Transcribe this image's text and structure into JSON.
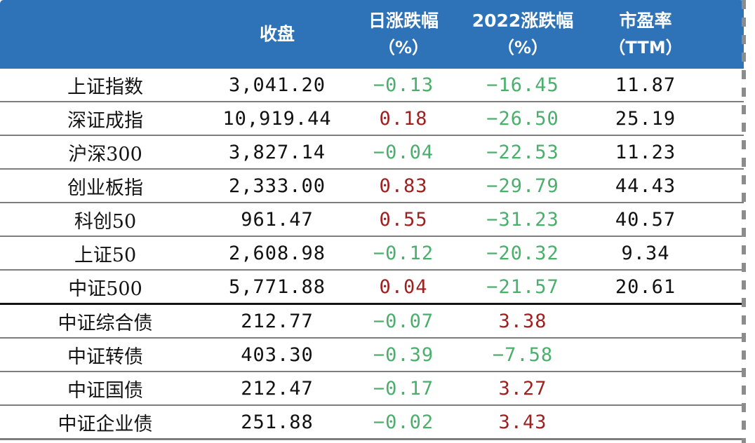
{
  "colors": {
    "header_bg": "#2E72B8",
    "header_text": "#ffffff",
    "decline_green": "#4CAE6C",
    "rise_red": "#9E2020",
    "row_line_gray": "#7d7d7d",
    "section_divider_black": "#141414",
    "dashed_border_gray": "#8c8c8c"
  },
  "header": {
    "name_col": "",
    "close": "收盘",
    "daily": "日涨跌幅",
    "daily_sub": "（%）",
    "ytd": "2022涨跌幅",
    "ytd_sub": "（%）",
    "pe": "市盈率",
    "pe_sub": "（TTM）"
  },
  "table": {
    "rows": [
      {
        "name": "上证指数",
        "close": "3,041.20",
        "daily": "−0.13",
        "daily_color": "green",
        "ytd": "−16.45",
        "ytd_color": "green",
        "pe": "11.87"
      },
      {
        "name": "深证成指",
        "close": "10,919.44",
        "daily": "0.18",
        "daily_color": "red",
        "ytd": "−26.50",
        "ytd_color": "green",
        "pe": "25.19"
      },
      {
        "name": "沪深300",
        "close": "3,827.14",
        "daily": "−0.04",
        "daily_color": "green",
        "ytd": "−22.53",
        "ytd_color": "green",
        "pe": "11.23"
      },
      {
        "name": "创业板指",
        "close": "2,333.00",
        "daily": "0.83",
        "daily_color": "red",
        "ytd": "−29.79",
        "ytd_color": "green",
        "pe": "44.43"
      },
      {
        "name": "科创50",
        "close": "961.47",
        "daily": "0.55",
        "daily_color": "red",
        "ytd": "−31.23",
        "ytd_color": "green",
        "pe": "40.57"
      },
      {
        "name": "上证50",
        "close": "2,608.98",
        "daily": "−0.12",
        "daily_color": "green",
        "ytd": "−20.32",
        "ytd_color": "green",
        "pe": "9.34"
      },
      {
        "name": "中证500",
        "close": "5,771.88",
        "daily": "0.04",
        "daily_color": "red",
        "ytd": "−21.57",
        "ytd_color": "green",
        "pe": "20.61"
      },
      {
        "name": "中证综合债",
        "close": "212.77",
        "daily": "−0.07",
        "daily_color": "green",
        "ytd": "3.38",
        "ytd_color": "red",
        "pe": ""
      },
      {
        "name": "中证转债",
        "close": "403.30",
        "daily": "−0.39",
        "daily_color": "green",
        "ytd": "−7.58",
        "ytd_color": "green",
        "pe": ""
      },
      {
        "name": "中证国债",
        "close": "212.47",
        "daily": "−0.17",
        "daily_color": "green",
        "ytd": "3.27",
        "ytd_color": "red",
        "pe": ""
      },
      {
        "name": "中证企业债",
        "close": "251.88",
        "daily": "−0.02",
        "daily_color": "green",
        "ytd": "3.43",
        "ytd_color": "red",
        "pe": ""
      }
    ]
  },
  "chart_data": {
    "type": "table",
    "title": "",
    "columns": [
      "",
      "收盘",
      "日涨跌幅（%）",
      "2022涨跌幅（%）",
      "市盈率（TTM）"
    ],
    "rows": [
      [
        "上证指数",
        3041.2,
        -0.13,
        -16.45,
        11.87
      ],
      [
        "深证成指",
        10919.44,
        0.18,
        -26.5,
        25.19
      ],
      [
        "沪深300",
        3827.14,
        -0.04,
        -22.53,
        11.23
      ],
      [
        "创业板指",
        2333.0,
        0.83,
        -29.79,
        44.43
      ],
      [
        "科创50",
        961.47,
        0.55,
        -31.23,
        40.57
      ],
      [
        "上证50",
        2608.98,
        -0.12,
        -20.32,
        9.34
      ],
      [
        "中证500",
        5771.88,
        0.04,
        -21.57,
        20.61
      ],
      [
        "中证综合债",
        212.77,
        -0.07,
        3.38,
        null
      ],
      [
        "中证转债",
        403.3,
        -0.39,
        -7.58,
        null
      ],
      [
        "中证国债",
        212.47,
        -0.17,
        3.27,
        null
      ],
      [
        "中证企业债",
        251.88,
        -0.02,
        3.43,
        null
      ]
    ],
    "layout": {
      "negative_color": "green",
      "positive_color": "dark-red",
      "section_divider_after_row": 7,
      "grid": "horizontal-only",
      "right_border": "dashed"
    }
  }
}
